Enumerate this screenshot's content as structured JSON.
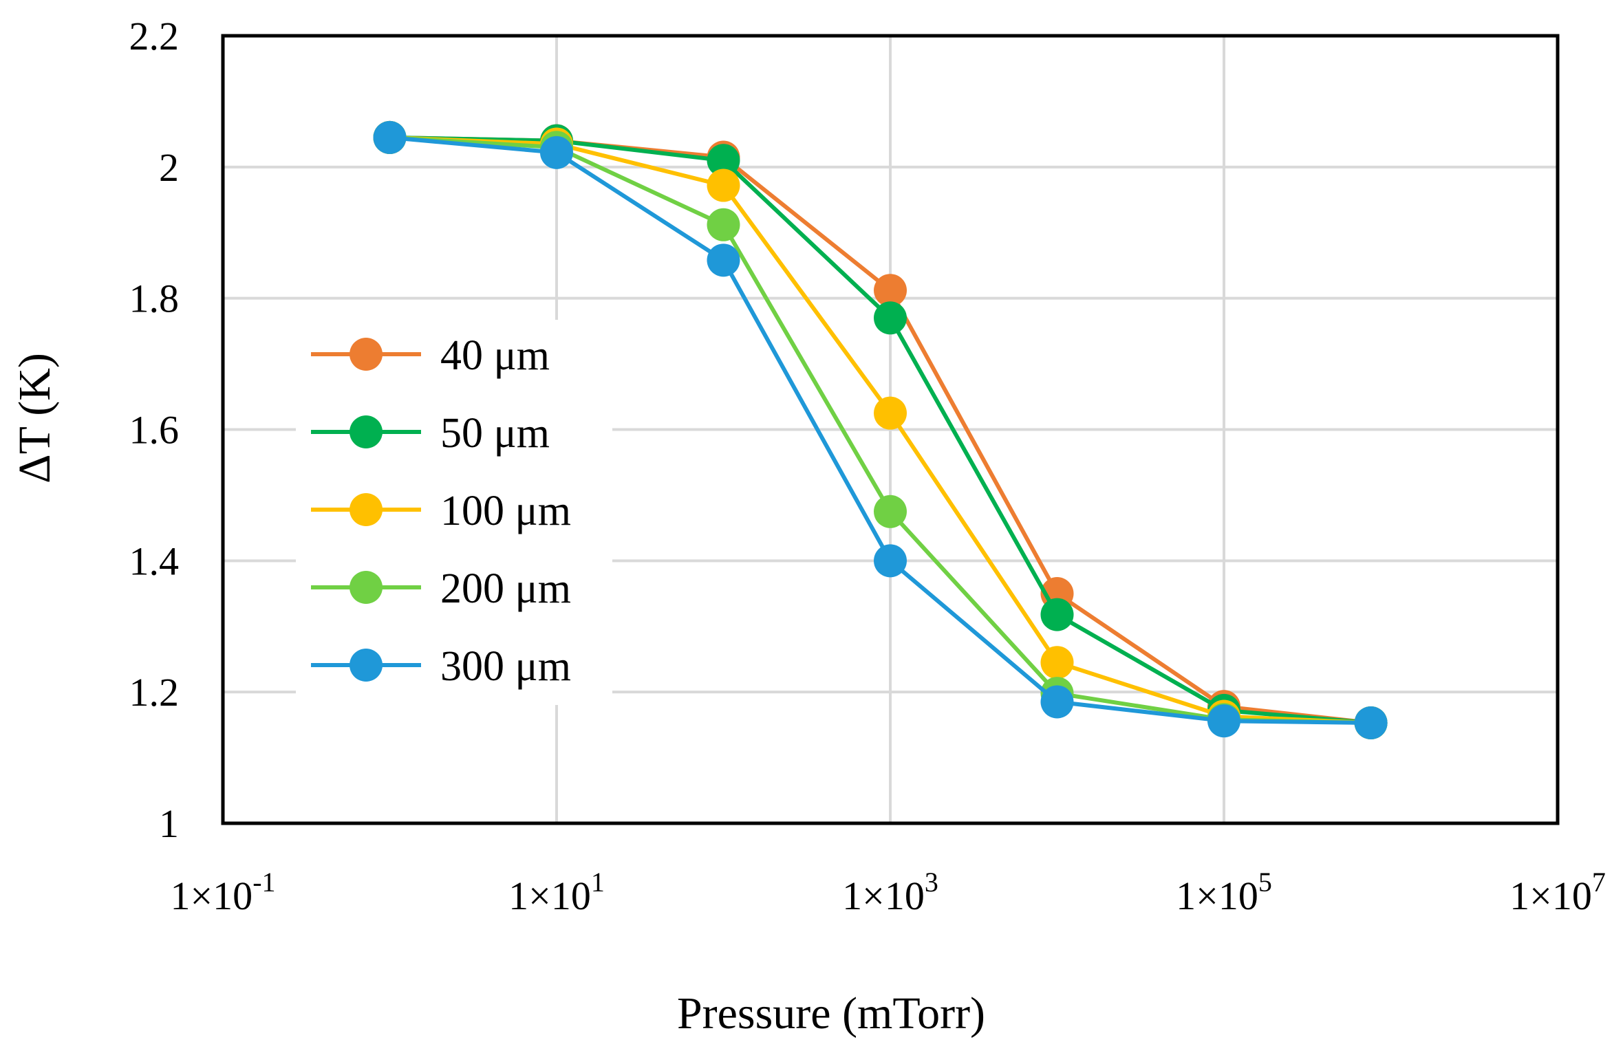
{
  "chart_data": {
    "type": "line",
    "xscale": "log",
    "title": "",
    "xlabel": "Pressure (mTorr)",
    "ylabel": "ΔT (K)",
    "xlim": [
      0.1,
      10000000
    ],
    "ylim": [
      1,
      2.2
    ],
    "yticks": [
      1,
      1.2,
      1.4,
      1.6,
      1.8,
      2,
      2.2
    ],
    "ytick_labels": [
      "1",
      "1.2",
      "1.4",
      "1.6",
      "1.8",
      "2",
      "2.2"
    ],
    "xticks": [
      {
        "value": 0.1,
        "base": "1×10",
        "exp": "-1"
      },
      {
        "value": 10,
        "base": "1×10",
        "exp": "1"
      },
      {
        "value": 1000,
        "base": "1×10",
        "exp": "3"
      },
      {
        "value": 100000,
        "base": "1×10",
        "exp": "5"
      },
      {
        "value": 10000000,
        "base": "1×10",
        "exp": "7"
      }
    ],
    "grid": true,
    "legend_position": "left-middle",
    "x": [
      1,
      10,
      100,
      1000,
      10000,
      100000,
      760000
    ],
    "series": [
      {
        "name": "40 μm",
        "color": "#ED7D31",
        "values": [
          2.045,
          2.04,
          2.015,
          1.812,
          1.35,
          1.178,
          1.153
        ]
      },
      {
        "name": "50 μm",
        "color": "#00B050",
        "values": [
          2.045,
          2.04,
          2.01,
          1.77,
          1.318,
          1.172,
          1.153
        ]
      },
      {
        "name": "100 μm",
        "color": "#FFC000",
        "values": [
          2.045,
          2.035,
          1.972,
          1.625,
          1.245,
          1.163,
          1.153
        ]
      },
      {
        "name": "200 μm",
        "color": "#70D044",
        "values": [
          2.045,
          2.03,
          1.912,
          1.475,
          1.198,
          1.158,
          1.153
        ]
      },
      {
        "name": "300 μm",
        "color": "#1F98D8",
        "values": [
          2.045,
          2.022,
          1.858,
          1.4,
          1.185,
          1.156,
          1.153
        ]
      }
    ]
  }
}
